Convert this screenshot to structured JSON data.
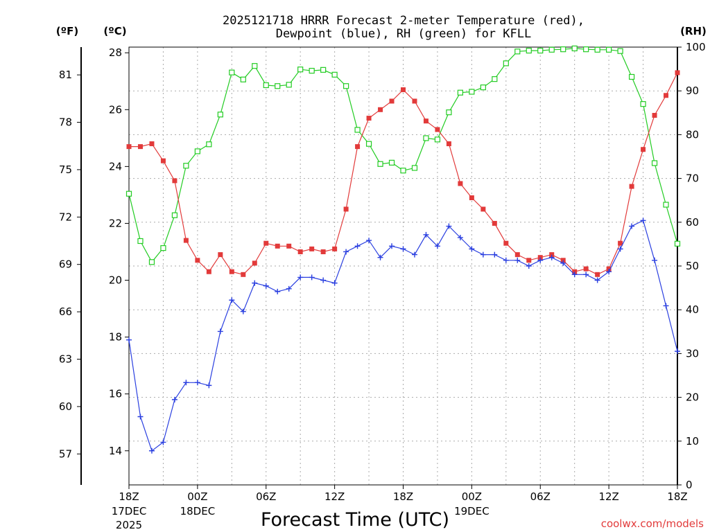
{
  "title_line1": "2025121718 HRRR Forecast 2-meter Temperature (red),",
  "title_line2": "Dewpoint (blue), RH (green) for KFLL",
  "axis_units": {
    "fahrenheit": "(ºF)",
    "celsius": "(ºC)",
    "rh": "(RH)"
  },
  "xlabel": "Forecast Time (UTC)",
  "credit": "coolwx.com/models",
  "colors": {
    "temperature": "#e23a3a",
    "dewpoint": "#2a3fe0",
    "rh": "#22cc22"
  },
  "chart_data": {
    "type": "line",
    "x": [
      0,
      1,
      2,
      3,
      4,
      5,
      6,
      7,
      8,
      9,
      10,
      11,
      12,
      13,
      14,
      15,
      16,
      17,
      18,
      19,
      20,
      21,
      22,
      23,
      24,
      25,
      26,
      27,
      28,
      29,
      30,
      31,
      32,
      33,
      34,
      35,
      36,
      37,
      38,
      39,
      40,
      41,
      42,
      43,
      44,
      45,
      46,
      47,
      48
    ],
    "x_unit": "forecast hour (from 2025-12-17 18Z)",
    "xlim": [
      0,
      48
    ],
    "x_ticks": [
      {
        "x": 0,
        "label": "18Z",
        "sub1": "17DEC",
        "sub2": "2025"
      },
      {
        "x": 6,
        "label": "00Z",
        "sub1": "18DEC",
        "sub2": ""
      },
      {
        "x": 12,
        "label": "06Z",
        "sub1": "",
        "sub2": ""
      },
      {
        "x": 18,
        "label": "12Z",
        "sub1": "",
        "sub2": ""
      },
      {
        "x": 24,
        "label": "18Z",
        "sub1": "",
        "sub2": ""
      },
      {
        "x": 30,
        "label": "00Z",
        "sub1": "19DEC",
        "sub2": ""
      },
      {
        "x": 36,
        "label": "06Z",
        "sub1": "",
        "sub2": ""
      },
      {
        "x": 42,
        "label": "12Z",
        "sub1": "",
        "sub2": ""
      },
      {
        "x": 48,
        "label": "18Z",
        "sub1": "",
        "sub2": ""
      }
    ],
    "ylim_celsius": [
      12.8,
      28.2
    ],
    "yticks_celsius": [
      "14",
      "16",
      "18",
      "20",
      "22",
      "24",
      "26",
      "28"
    ],
    "yticks_fahrenheit": [
      "57",
      "60",
      "63",
      "66",
      "69",
      "72",
      "75",
      "78",
      "81"
    ],
    "ylim_rh": [
      0,
      100
    ],
    "yticks_rh": [
      "0",
      "10",
      "20",
      "30",
      "40",
      "50",
      "60",
      "70",
      "80",
      "90",
      "100"
    ],
    "grid": true,
    "series": [
      {
        "name": "Temperature",
        "axis": "celsius",
        "color": "#e23a3a",
        "marker": "filled-square",
        "values": [
          24.7,
          24.7,
          24.8,
          24.2,
          23.5,
          21.4,
          20.7,
          20.3,
          20.9,
          20.3,
          20.2,
          20.6,
          21.3,
          21.2,
          21.2,
          21.0,
          21.1,
          21.0,
          21.1,
          22.5,
          24.7,
          25.7,
          26.0,
          26.3,
          26.7,
          26.3,
          25.6,
          25.3,
          24.8,
          23.4,
          22.9,
          22.5,
          22.0,
          21.3,
          20.9,
          20.7,
          20.8,
          20.9,
          20.7,
          20.3,
          20.4,
          20.2,
          20.4,
          21.3,
          23.3,
          24.6,
          25.8,
          26.5,
          27.3
        ]
      },
      {
        "name": "Dewpoint",
        "axis": "celsius",
        "color": "#2a3fe0",
        "marker": "plus",
        "values": [
          17.9,
          15.2,
          14.0,
          14.3,
          15.8,
          16.4,
          16.4,
          16.3,
          18.2,
          19.3,
          18.9,
          19.9,
          19.8,
          19.6,
          19.7,
          20.1,
          20.1,
          20.0,
          19.9,
          21.0,
          21.2,
          21.4,
          20.8,
          21.2,
          21.1,
          20.9,
          21.6,
          21.2,
          21.9,
          21.5,
          21.1,
          20.9,
          20.9,
          20.7,
          20.7,
          20.5,
          20.7,
          20.8,
          20.6,
          20.2,
          20.2,
          20.0,
          20.3,
          21.1,
          21.9,
          22.1,
          20.7,
          19.1,
          17.5
        ]
      },
      {
        "name": "RH",
        "axis": "rh",
        "color": "#22cc22",
        "marker": "open-square",
        "values": [
          66.5,
          55.7,
          50.9,
          54.1,
          61.6,
          72.9,
          76.2,
          77.8,
          84.6,
          94.2,
          92.6,
          95.7,
          91.3,
          91.1,
          91.4,
          94.9,
          94.6,
          94.8,
          93.7,
          91.1,
          81.1,
          77.9,
          73.3,
          73.6,
          71.8,
          72.4,
          79.2,
          78.9,
          85.1,
          89.6,
          89.8,
          90.8,
          92.7,
          96.3,
          99.0,
          99.2,
          99.2,
          99.4,
          99.5,
          99.7,
          99.5,
          99.4,
          99.4,
          99.1,
          93.2,
          87.0,
          73.5,
          64.0,
          55.1
        ]
      }
    ]
  }
}
